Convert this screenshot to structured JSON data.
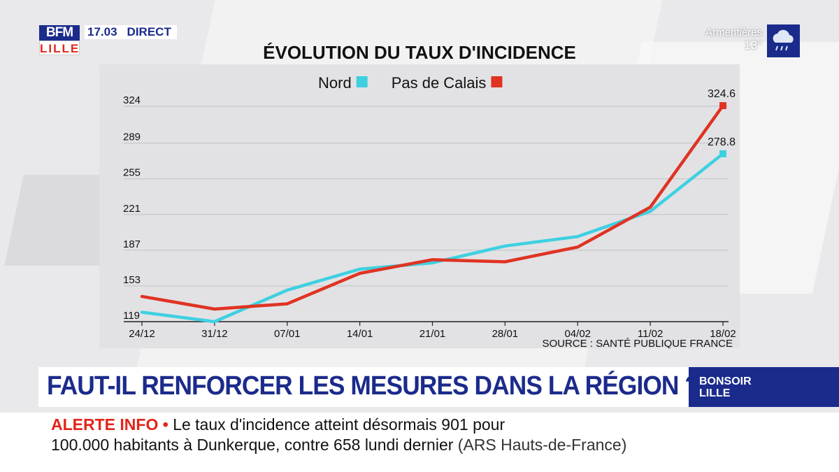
{
  "header": {
    "logo_top": "BFM",
    "logo_bottom": "LILLE",
    "time": "17.03",
    "live": "DIRECT"
  },
  "weather": {
    "city": "Armentières",
    "temp": "13°",
    "icon": "rain-cloud-icon"
  },
  "chart_data": {
    "type": "line",
    "title": "ÉVOLUTION DU TAUX D'INCIDENCE",
    "categories": [
      "24/12",
      "31/12",
      "07/01",
      "14/01",
      "21/01",
      "28/01",
      "04/02",
      "11/02",
      "18/02"
    ],
    "y_ticks": [
      119,
      153,
      187,
      221,
      255,
      289,
      324
    ],
    "ylim": [
      119,
      324
    ],
    "series": [
      {
        "name": "Nord",
        "color": "#3fd0e0",
        "values": [
          128,
          119,
          149,
          169,
          175,
          191,
          200,
          224,
          278.8
        ]
      },
      {
        "name": "Pas de Calais",
        "color": "#e03322",
        "values": [
          143,
          131,
          136,
          165,
          178,
          176,
          190,
          228,
          324.6
        ]
      }
    ],
    "end_labels": [
      "278.8",
      "324.6"
    ],
    "source": "SOURCE : SANTÉ PUBLIQUE FRANCE",
    "legend": "top-center",
    "grid": true
  },
  "headline": {
    "text": "FAUT-IL RENFORCER LES MESURES DANS LA RÉGION ?",
    "show_line1": "BONSOIR",
    "show_line2": "LILLE"
  },
  "ticker": {
    "label": "ALERTE INFO",
    "bullet": "•",
    "line1": "Le taux d'incidence atteint désormais 901 pour",
    "line2": "100.000 habitants à Dunkerque, contre 658 lundi dernier",
    "source": "(ARS Hauts-de-France)"
  }
}
